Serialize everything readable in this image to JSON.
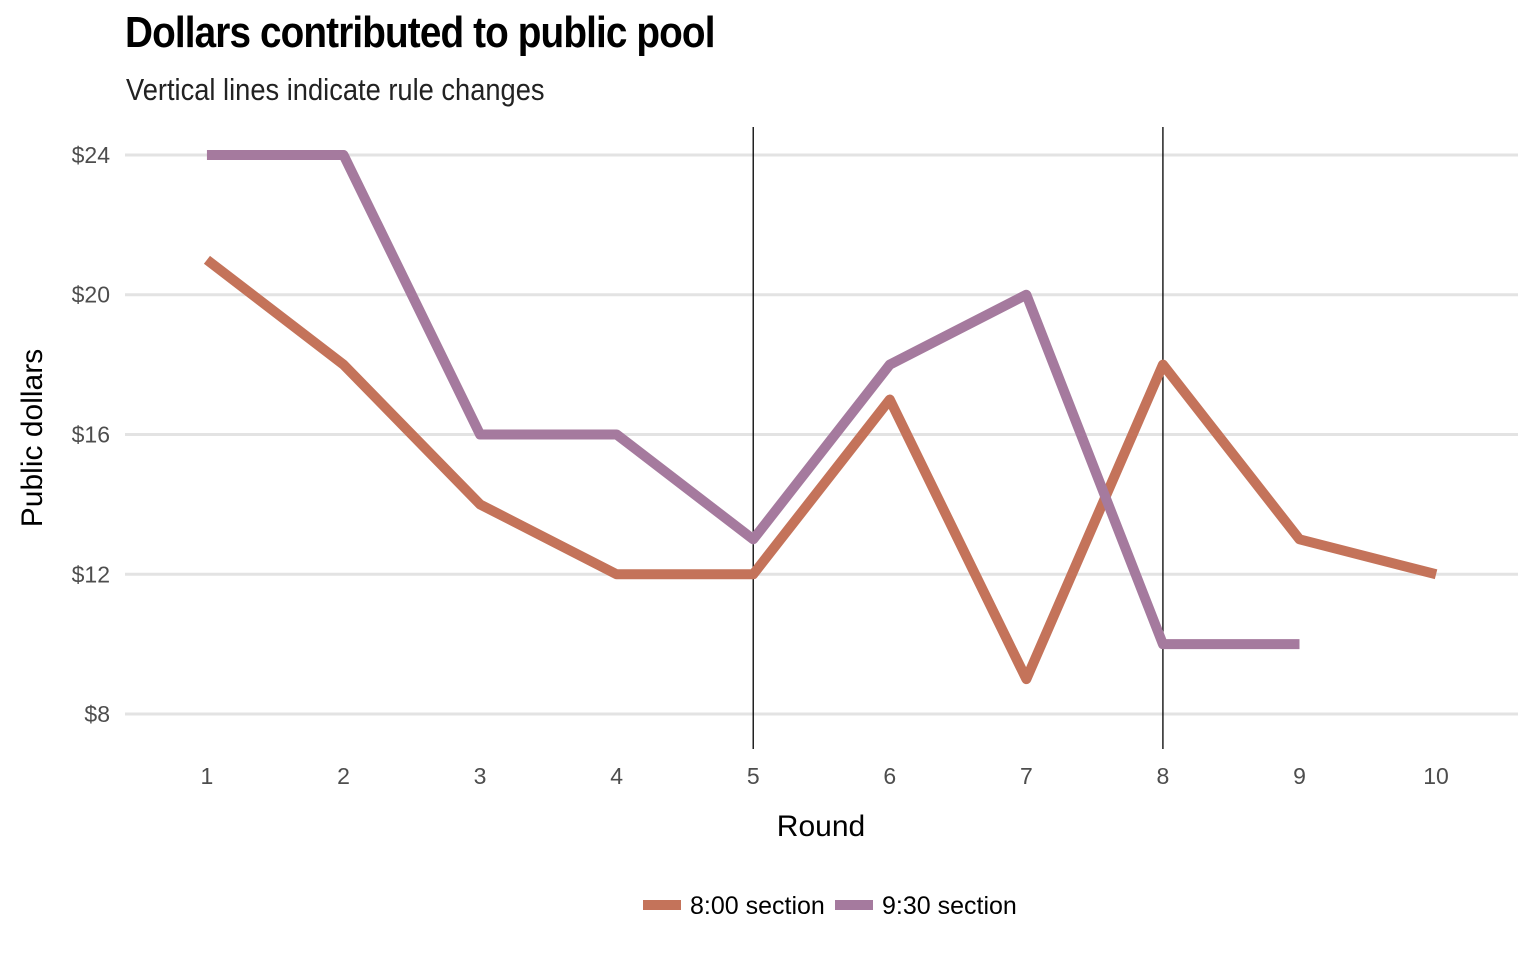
{
  "chart_data": {
    "type": "line",
    "title": "Dollars contributed to public pool",
    "subtitle": "Vertical lines indicate rule changes",
    "xlabel": "Round",
    "ylabel": "Public dollars",
    "x": [
      1,
      2,
      3,
      4,
      5,
      6,
      7,
      8,
      9,
      10
    ],
    "xlim": [
      0.4,
      10.6
    ],
    "ylim": [
      7.0,
      24.8
    ],
    "yticks": [
      8,
      12,
      16,
      20,
      24
    ],
    "ytick_labels": [
      "$8",
      "$12",
      "$16",
      "$20",
      "$24"
    ],
    "xtick_labels": [
      "1",
      "2",
      "3",
      "4",
      "5",
      "6",
      "7",
      "8",
      "9",
      "10"
    ],
    "vlines": [
      5,
      8
    ],
    "grid": "horizontal",
    "legend_position": "bottom",
    "series": [
      {
        "name": "8:00 section",
        "color": "#c4735a",
        "values": [
          21,
          18,
          14,
          12,
          12,
          17,
          9,
          18,
          13,
          12
        ]
      },
      {
        "name": "9:30 section",
        "color": "#a57a9e",
        "values": [
          24,
          24,
          16,
          16,
          13,
          18,
          20,
          10,
          10,
          null
        ]
      }
    ]
  }
}
